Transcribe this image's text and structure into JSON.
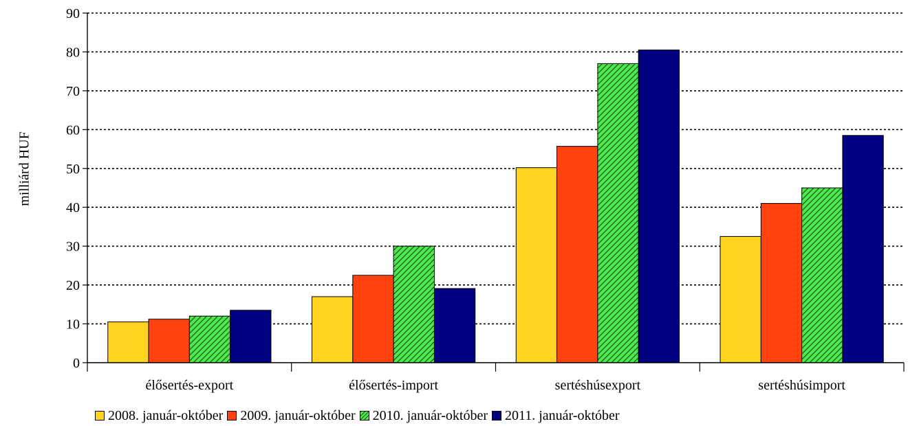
{
  "chart_data": {
    "type": "bar",
    "title": "",
    "xlabel": "",
    "ylabel": "milliárd HUF",
    "ylim": [
      0,
      90
    ],
    "yticks": [
      0,
      10,
      20,
      30,
      40,
      50,
      60,
      70,
      80,
      90
    ],
    "grid": true,
    "legend_position": "bottom",
    "categories": [
      "élősertés-export",
      "élősertés-import",
      "sertéshúsexport",
      "sertéshúsimport"
    ],
    "series": [
      {
        "name": "2008. január-október",
        "color": "#FFD320",
        "pattern": "solid",
        "values": [
          10.5,
          17,
          50.2,
          32.5
        ]
      },
      {
        "name": "2009. január-október",
        "color": "#FF420E",
        "pattern": "solid",
        "values": [
          11.2,
          22.5,
          55.7,
          41
        ]
      },
      {
        "name": "2010. január-október",
        "color": "#4CE84C",
        "pattern": "hatched",
        "values": [
          12,
          30,
          77,
          45
        ]
      },
      {
        "name": "2011. január-október",
        "color": "#000080",
        "pattern": "solid",
        "values": [
          13.5,
          19.1,
          80.5,
          58.5
        ]
      }
    ]
  }
}
